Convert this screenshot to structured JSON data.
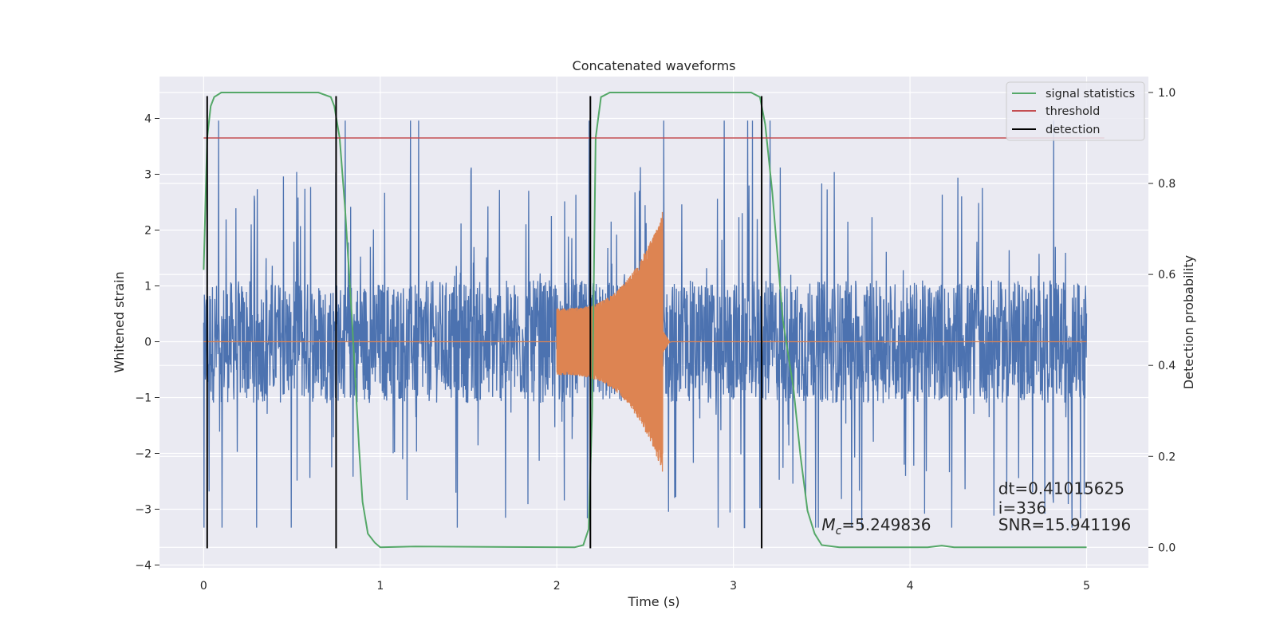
{
  "chart_data": {
    "type": "line",
    "title": "Concatenated waveforms",
    "xlabel": "Time (s)",
    "ylabel": "Whitened strain",
    "y2label": "Detection probability",
    "xlim": [
      -0.25,
      5.35
    ],
    "ylim": [
      -4.05,
      4.75
    ],
    "y2lim": [
      -0.045,
      1.035
    ],
    "xticks": [
      0,
      1,
      2,
      3,
      4,
      5
    ],
    "yticks": [
      -4,
      -3,
      -2,
      -1,
      0,
      1,
      2,
      3,
      4
    ],
    "y2ticks": [
      0.0,
      0.2,
      0.4,
      0.6,
      0.8,
      1.0
    ],
    "xtick_labels": [
      "0",
      "1",
      "2",
      "3",
      "4",
      "5"
    ],
    "ytick_labels": [
      "−4",
      "−3",
      "−2",
      "−1",
      "0",
      "1",
      "2",
      "3",
      "4"
    ],
    "y2tick_labels": [
      "0.0",
      "0.2",
      "0.4",
      "0.6",
      "0.8",
      "1.0"
    ],
    "grid": true,
    "legend_position": "top-right",
    "colors": {
      "background": "#eaeaf2",
      "grid": "#ffffff",
      "strain": "#4c72b0",
      "template": "#dd8452",
      "signal_statistics": "#55a868",
      "threshold": "#c44e52",
      "detection": "#000000"
    },
    "legend": [
      {
        "label": "signal statistics",
        "color": "#55a868"
      },
      {
        "label": "threshold",
        "color": "#c44e52"
      },
      {
        "label": "detection",
        "color": "#000000"
      }
    ],
    "series": [
      {
        "name": "signal statistics",
        "axis": "right",
        "x": [
          0.0,
          0.02,
          0.04,
          0.06,
          0.1,
          0.2,
          0.65,
          0.72,
          0.74,
          0.77,
          0.8,
          0.84,
          0.88,
          0.9,
          0.93,
          0.97,
          1.0,
          1.2,
          2.1,
          2.15,
          2.18,
          2.2,
          2.22,
          2.25,
          2.3,
          3.1,
          3.15,
          3.18,
          3.22,
          3.28,
          3.34,
          3.38,
          3.42,
          3.46,
          3.5,
          3.6,
          4.1,
          4.18,
          4.25,
          5.0
        ],
        "y": [
          0.61,
          0.9,
          0.97,
          0.99,
          1.0,
          1.0,
          1.0,
          0.99,
          0.97,
          0.9,
          0.75,
          0.5,
          0.22,
          0.1,
          0.03,
          0.01,
          0.0,
          0.002,
          0.0,
          0.005,
          0.04,
          0.3,
          0.9,
          0.99,
          1.0,
          1.0,
          0.99,
          0.93,
          0.78,
          0.5,
          0.35,
          0.2,
          0.08,
          0.03,
          0.005,
          0.0,
          0.0,
          0.004,
          0.0,
          0.0
        ]
      },
      {
        "name": "threshold",
        "axis": "right",
        "x": [
          0.0,
          5.1
        ],
        "y": [
          0.9,
          0.9
        ]
      },
      {
        "name": "detection",
        "axis": "left",
        "vlines": [
          0.02,
          0.75,
          2.19,
          3.16
        ],
        "ymin": -3.7,
        "ymax": 4.4
      },
      {
        "axis": "left",
        "noise": true,
        "x_range": [
          0.0,
          5.0
        ],
        "typical_band": [
          -1.1,
          1.1
        ],
        "peak_range": [
          -3.7,
          4.4
        ]
      },
      {
        "axis": "left",
        "chirp": true,
        "x_range": [
          2.0,
          2.6
        ],
        "envelope_start": 0.6,
        "envelope_peak": 2.35,
        "peak_time": 2.6
      }
    ],
    "annotations": [
      {
        "text": "dt=0.41015625",
        "x": 4.5,
        "y": -2.73
      },
      {
        "text": " i=336",
        "x": 4.5,
        "y": -3.08
      },
      {
        "text": "=5.249836",
        "math_prefix": "M",
        "math_sub": "c",
        "x": 3.5,
        "y": -3.38
      },
      {
        "text": "SNR=15.941196",
        "x": 4.5,
        "y": -3.38
      }
    ]
  }
}
